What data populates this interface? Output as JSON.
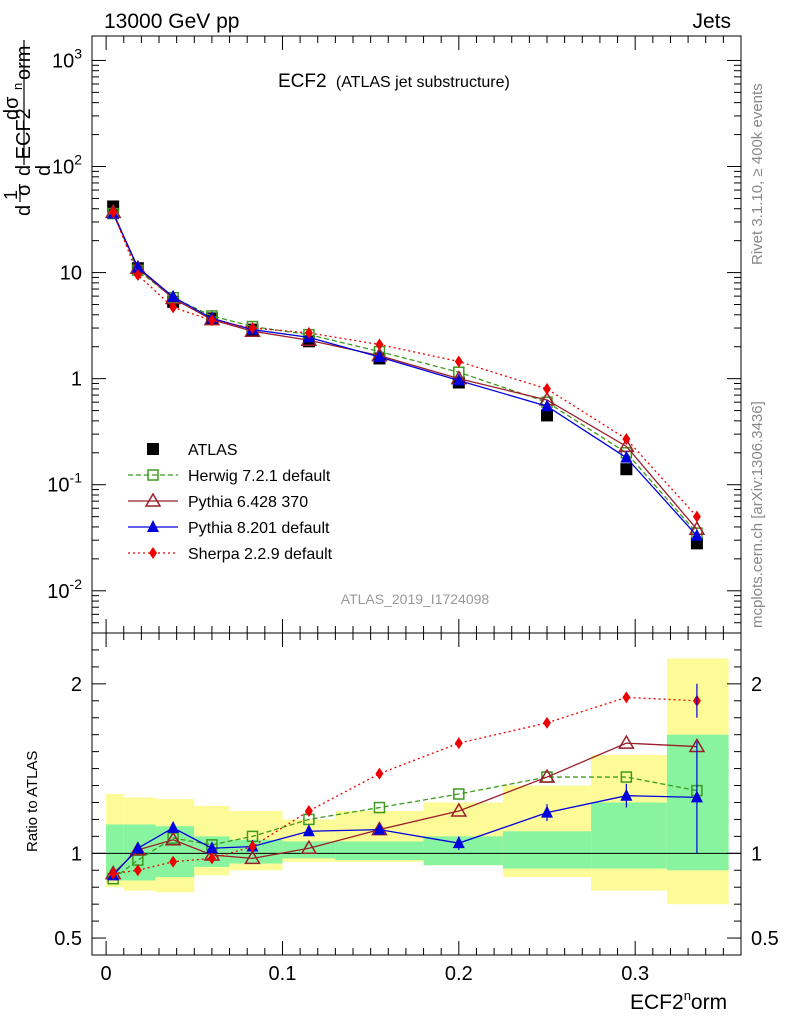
{
  "header": {
    "left": "13000 GeV pp",
    "right": "Jets"
  },
  "side_labels": {
    "rivet": "Rivet 3.1.10, ≥ 400k events",
    "mcplots": "mcplots.cern.ch [arXiv:1306.3436]"
  },
  "plot_title": {
    "main": "ECF2",
    "sub": "(ATLAS jet substructure)"
  },
  "analysis_id": "ATLAS_2019_I1724098",
  "colors": {
    "ATLAS": "#000000",
    "Herwig": "#3c9a1e",
    "Pythia6": "#9a1e2a",
    "Pythia8": "#0000dd",
    "Sherpa": "#ee0000",
    "band_inner": "#88f4a0",
    "band_outer": "#fdfb98"
  },
  "chart_data": [
    {
      "type": "scatter",
      "yscale": "log",
      "ylim": [
        0.004,
        1700
      ],
      "xlim": [
        -0.008,
        0.36
      ],
      "ylabel": "1/σ dσ/d ECF2^norm",
      "y_ticks": [
        "10^-2",
        "10^-1",
        "1",
        "10",
        "10^2",
        "10^3"
      ],
      "x": [
        0.004,
        0.018,
        0.038,
        0.06,
        0.083,
        0.115,
        0.155,
        0.2,
        0.25,
        0.295,
        0.335
      ],
      "series": [
        {
          "name": "ATLAS",
          "marker": "square",
          "values": [
            42,
            11,
            5.3,
            3.7,
            2.9,
            2.25,
            1.55,
            0.92,
            0.45,
            0.14,
            0.028
          ]
        },
        {
          "name": "Herwig 7.2.1 default",
          "marker": "open-square",
          "line": "dashed",
          "values": [
            36,
            10.5,
            5.8,
            3.9,
            3.1,
            2.6,
            1.8,
            1.15,
            0.6,
            0.2,
            0.035
          ]
        },
        {
          "name": "Pythia 6.428 370",
          "marker": "open-triangle",
          "line": "solid",
          "values": [
            37,
            11,
            5.7,
            3.6,
            2.8,
            2.3,
            1.65,
            1.0,
            0.63,
            0.23,
            0.038
          ]
        },
        {
          "name": "Pythia 8.201 default",
          "marker": "triangle",
          "line": "solid",
          "values": [
            36,
            11.2,
            5.9,
            3.7,
            2.9,
            2.45,
            1.6,
            0.96,
            0.55,
            0.18,
            0.033
          ]
        },
        {
          "name": "Sherpa 2.2.9 default",
          "marker": "diamond",
          "line": "dotted",
          "values": [
            37,
            9.5,
            4.7,
            3.55,
            3.0,
            2.7,
            2.1,
            1.45,
            0.8,
            0.27,
            0.05
          ]
        }
      ]
    },
    {
      "type": "scatter",
      "ylabel": "Ratio to ATLAS",
      "xlabel": "ECF2^norm",
      "ylim": [
        0.4,
        2.3
      ],
      "xlim": [
        -0.008,
        0.36
      ],
      "x_ticks": [
        "0",
        "0.1",
        "0.2",
        "0.3"
      ],
      "y_ticks": [
        "0.5",
        "1",
        "2"
      ],
      "x": [
        0.004,
        0.018,
        0.038,
        0.06,
        0.083,
        0.115,
        0.155,
        0.2,
        0.25,
        0.295,
        0.335
      ],
      "bins": [
        [
          0,
          0.01
        ],
        [
          0.01,
          0.028
        ],
        [
          0.028,
          0.05
        ],
        [
          0.05,
          0.07
        ],
        [
          0.07,
          0.1
        ],
        [
          0.1,
          0.13
        ],
        [
          0.13,
          0.18
        ],
        [
          0.18,
          0.225
        ],
        [
          0.225,
          0.275
        ],
        [
          0.275,
          0.318
        ],
        [
          0.318,
          0.353
        ]
      ],
      "band_inner": [
        [
          0.84,
          1.17
        ],
        [
          0.84,
          1.17
        ],
        [
          0.86,
          1.16
        ],
        [
          0.92,
          1.1
        ],
        [
          0.94,
          1.08
        ],
        [
          0.97,
          1.07
        ],
        [
          0.96,
          1.07
        ],
        [
          0.93,
          1.1
        ],
        [
          0.91,
          1.13
        ],
        [
          0.91,
          1.3
        ],
        [
          0.9,
          1.7
        ]
      ],
      "band_outer": [
        [
          0.8,
          1.35
        ],
        [
          0.78,
          1.33
        ],
        [
          0.77,
          1.32
        ],
        [
          0.87,
          1.28
        ],
        [
          0.9,
          1.25
        ],
        [
          0.95,
          1.2
        ],
        [
          0.95,
          1.25
        ],
        [
          0.93,
          1.3
        ],
        [
          0.86,
          1.4
        ],
        [
          0.78,
          1.58
        ],
        [
          0.7,
          2.15
        ]
      ],
      "series": [
        {
          "name": "Herwig 7.2.1 default",
          "values": [
            0.85,
            0.96,
            1.09,
            1.05,
            1.1,
            1.2,
            1.27,
            1.35,
            1.45,
            1.45,
            1.37
          ]
        },
        {
          "name": "Pythia 6.428 370",
          "values": [
            0.88,
            1.02,
            1.08,
            0.99,
            0.97,
            1.03,
            1.14,
            1.25,
            1.45,
            1.65,
            1.63
          ]
        },
        {
          "name": "Pythia 8.201 default",
          "values": [
            0.87,
            1.03,
            1.15,
            1.03,
            1.04,
            1.13,
            1.14,
            1.06,
            1.24,
            1.34,
            1.33
          ]
        },
        {
          "name": "Sherpa 2.2.9 default",
          "values": [
            0.88,
            0.9,
            0.95,
            0.97,
            1.04,
            1.25,
            1.47,
            1.65,
            1.77,
            1.92,
            1.9
          ]
        }
      ]
    }
  ]
}
